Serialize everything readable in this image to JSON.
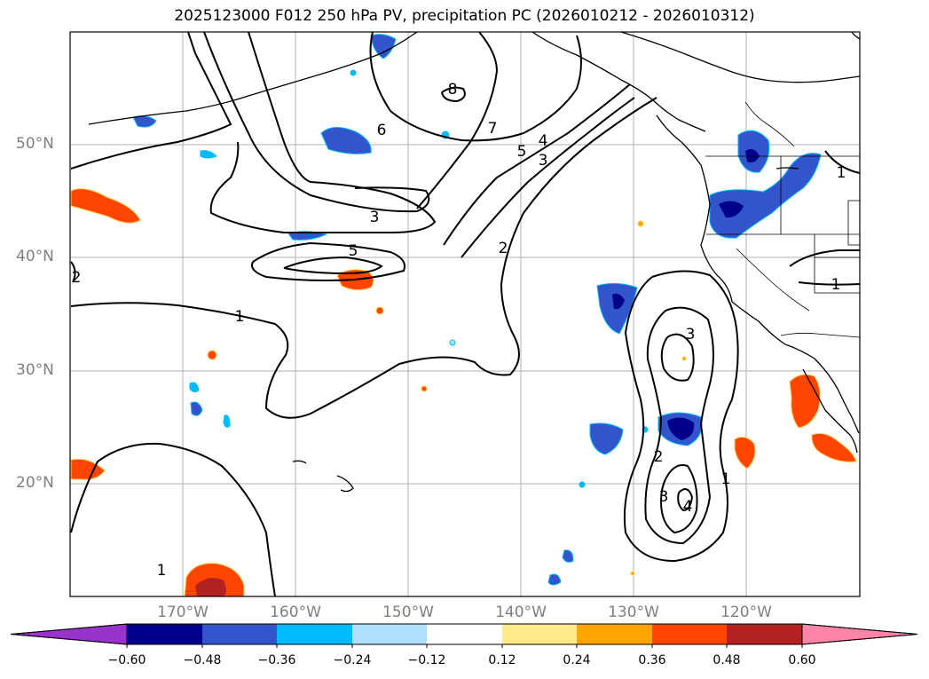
{
  "title": "2025123000 F012 250 hPa PV, precipitation PC (2026010212 - 2026010312)",
  "lat_labels": [
    "50°N",
    "40°N",
    "30°N",
    "20°N"
  ],
  "lon_labels": [
    "170°W",
    "160°W",
    "150°W",
    "140°W",
    "130°W",
    "120°W"
  ],
  "colorbar": {
    "ticks": [
      "−0.60",
      "−0.48",
      "−0.36",
      "−0.24",
      "−0.12",
      "0.12",
      "0.24",
      "0.36",
      "0.48",
      "0.60"
    ],
    "colors": [
      "#9933cc",
      "#00008b",
      "#3355cc",
      "#00bbff",
      "#aee0fb",
      "#ffffff",
      "#ffe98a",
      "#ffa500",
      "#ff4500",
      "#b22222",
      "#ff85a8"
    ]
  },
  "contour_labels": [
    "8",
    "7",
    "6",
    "5",
    "4",
    "3",
    "3",
    "5",
    "2",
    "1",
    "1",
    "2",
    "1",
    "3",
    "2",
    "3",
    "4",
    "1",
    "1"
  ]
}
